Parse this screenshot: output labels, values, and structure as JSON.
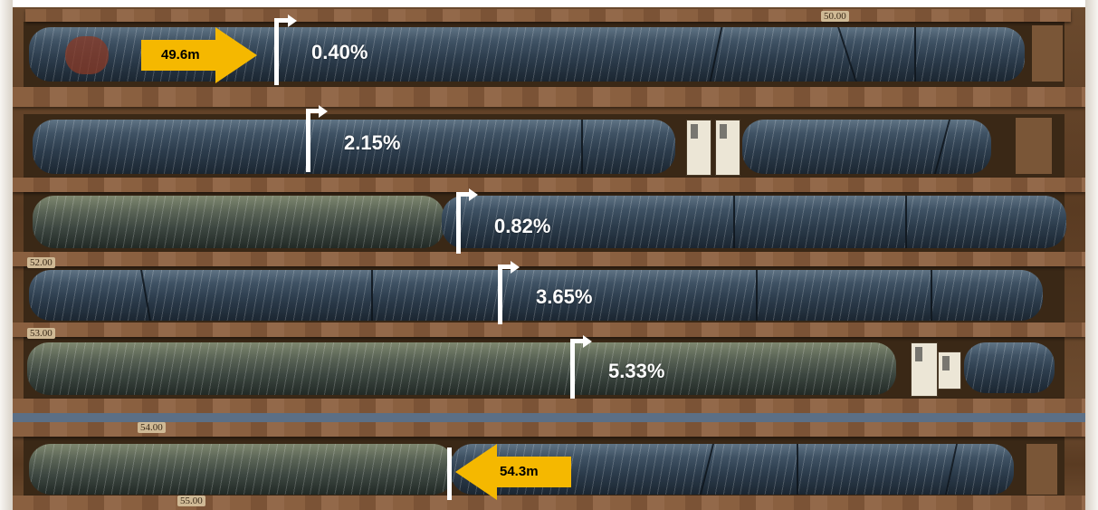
{
  "photo": {
    "subject": "drill-core-tray",
    "interval_arrows": [
      {
        "label": "49.6m",
        "direction": "right",
        "color": "#f5b800"
      },
      {
        "label": "54.3m",
        "direction": "left",
        "color": "#f5b800"
      }
    ],
    "grade_markers": [
      {
        "label": "0.40%"
      },
      {
        "label": "2.15%"
      },
      {
        "label": "0.82%"
      },
      {
        "label": "3.65%"
      },
      {
        "label": "5.33%"
      }
    ],
    "depth_marks": [
      {
        "label": "50.00"
      },
      {
        "label": "52.00"
      },
      {
        "label": "53.00"
      },
      {
        "label": "54.00"
      },
      {
        "label": "55.00"
      }
    ]
  }
}
